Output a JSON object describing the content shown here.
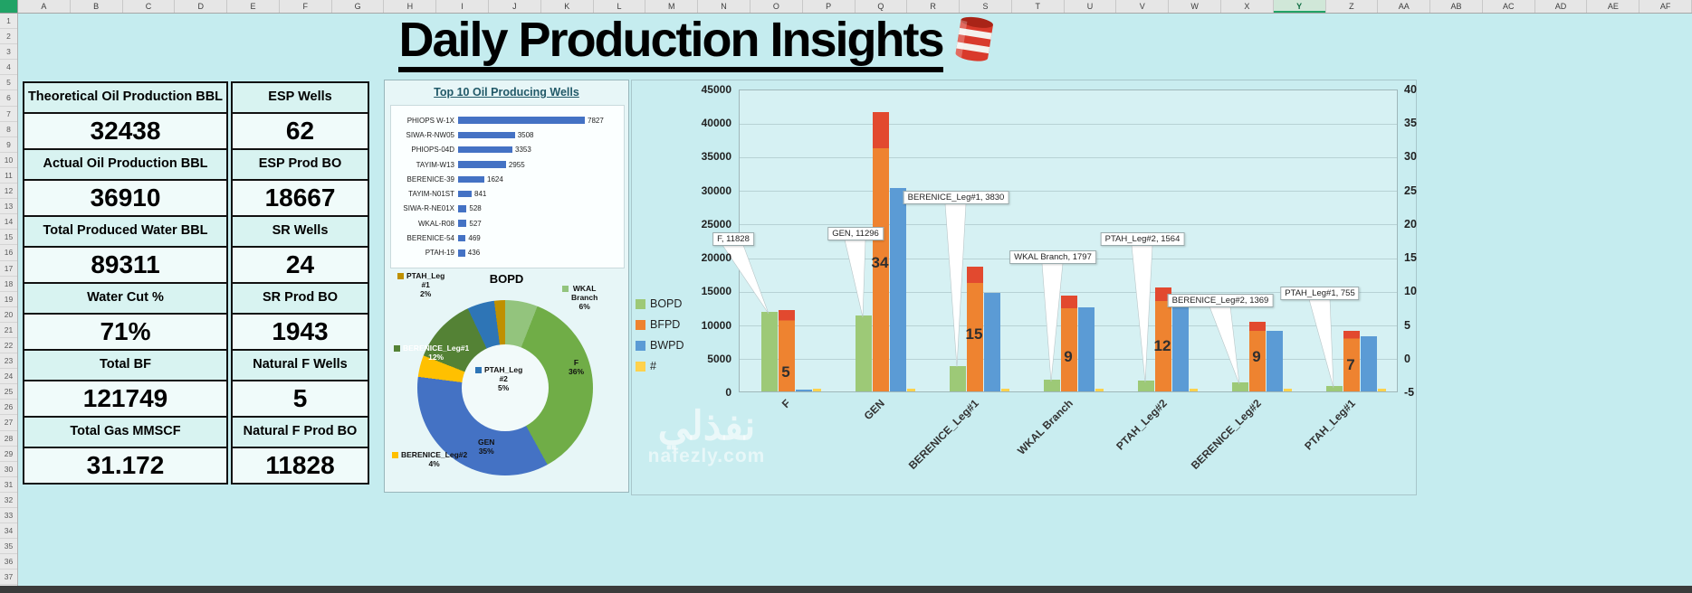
{
  "spreadsheet": {
    "columns": [
      "A",
      "B",
      "C",
      "D",
      "E",
      "F",
      "G",
      "H",
      "I",
      "J",
      "K",
      "L",
      "M",
      "N",
      "O",
      "P",
      "Q",
      "R",
      "S",
      "T",
      "U",
      "V",
      "W",
      "X",
      "Y",
      "Z",
      "AA",
      "AB",
      "AC",
      "AD",
      "AE",
      "AF"
    ],
    "row_count": 37,
    "selected_column": "Y"
  },
  "title": "Daily Production Insights",
  "kpis": {
    "left": [
      {
        "label": "Theoretical Oil Production BBL",
        "value": "32438"
      },
      {
        "label": "Actual Oil Production BBL",
        "value": "36910"
      },
      {
        "label": "Total Produced Water BBL",
        "value": "89311"
      },
      {
        "label": "Water Cut %",
        "value": "71%"
      },
      {
        "label": "Total BF",
        "value": "121749"
      },
      {
        "label": "Total Gas MMSCF",
        "value": "31.172"
      }
    ],
    "right": [
      {
        "label": "ESP Wells",
        "value": "62"
      },
      {
        "label": "ESP Prod BO",
        "value": "18667"
      },
      {
        "label": "SR Wells",
        "value": "24"
      },
      {
        "label": "SR Prod BO",
        "value": "1943"
      },
      {
        "label": "Natural F Wells",
        "value": "5"
      },
      {
        "label": "Natural F Prod BO",
        "value": "11828"
      }
    ]
  },
  "top10": {
    "title": "Top 10 Oil Producing Wells",
    "type": "bar",
    "bar_color": "#4472c4",
    "wells": [
      {
        "name": "PHIOPS W-1X",
        "value": 7827
      },
      {
        "name": "SIWA-R-NW05",
        "value": 3508
      },
      {
        "name": "PHIOPS-04D",
        "value": 3353
      },
      {
        "name": "TAYIM-W13",
        "value": 2955
      },
      {
        "name": "BERENICE-39",
        "value": 1624
      },
      {
        "name": "TAYIM-N01ST",
        "value": 841
      },
      {
        "name": "SIWA-R-NE01X",
        "value": 528
      },
      {
        "name": "WKAL-R08",
        "value": 527
      },
      {
        "name": "BERENICE-54",
        "value": 469
      },
      {
        "name": "PTAH-19",
        "value": 436
      }
    ]
  },
  "donut": {
    "title": "BOPD",
    "type": "pie",
    "slices": [
      {
        "name": "WKAL Branch",
        "pct": 6,
        "color": "#93c47d",
        "lines": [
          "WKAL",
          "Branch",
          "6%"
        ],
        "key": true,
        "white": false
      },
      {
        "name": "F",
        "pct": 36,
        "color": "#70ad47",
        "lines": [
          "F",
          "36%"
        ],
        "key": false,
        "white": false
      },
      {
        "name": "GEN",
        "pct": 35,
        "color": "#4472c4",
        "lines": [
          "GEN",
          "35%"
        ],
        "key": false,
        "white": false
      },
      {
        "name": "BERENICE_Leg#2",
        "pct": 4,
        "color": "#ffc000",
        "lines": [
          "BERENICE_Leg#2",
          "4%"
        ],
        "key": true,
        "white": false
      },
      {
        "name": "BERENICE_Leg#1",
        "pct": 12,
        "color": "#548235",
        "lines": [
          "BERENICE_Leg#1",
          "12%"
        ],
        "key": true,
        "white": true
      },
      {
        "name": "PTAH_Leg #2",
        "pct": 5,
        "color": "#2e75b6",
        "lines": [
          "PTAH_Leg",
          "#2",
          "5%"
        ],
        "key": true,
        "white": false
      },
      {
        "name": "PTAH_Leg #1",
        "pct": 2,
        "color": "#bf9000",
        "lines": [
          "PTAH_Leg",
          "#1",
          "2%"
        ],
        "key": true,
        "white": false
      }
    ]
  },
  "combo": {
    "type": "bar",
    "legend": [
      {
        "label": "BOPD",
        "color": "#9dc977"
      },
      {
        "label": "BFPD",
        "color": "#ee8330"
      },
      {
        "label": "BWPD",
        "color": "#5b9bd5"
      },
      {
        "label": "#",
        "color": "#ffd24d"
      }
    ],
    "categories": [
      "F",
      "GEN",
      "BERENICE_Leg#1",
      "WKAL Branch",
      "PTAH_Leg#2",
      "BERENICE_Leg#2",
      "PTAH_Leg#1"
    ],
    "series": {
      "BOPD": [
        11828,
        11296,
        3830,
        1797,
        1564,
        1369,
        755
      ],
      "BFPD": [
        12050,
        41500,
        18500,
        14300,
        15400,
        10400,
        8950
      ],
      "BWPD": [
        230,
        30200,
        14650,
        12500,
        13800,
        9050,
        8200
      ],
      "#": [
        5,
        34,
        15,
        9,
        12,
        9,
        7
      ]
    },
    "callouts": [
      "F, 11828",
      "GEN, 11296",
      "BERENICE_Leg#1, 3830",
      "WKAL Branch, 1797",
      "PTAH_Leg#2, 1564",
      "BERENICE_Leg#2, 1369",
      "PTAH_Leg#1, 755"
    ],
    "left_axis": {
      "min": 0,
      "max": 45000,
      "step": 5000
    },
    "right_axis": {
      "min": 0,
      "max": 40,
      "step": 5
    },
    "bfpd_cap_color": "#e2492f"
  },
  "watermark": {
    "line1": "نفذلي",
    "line2": "nafezly.com"
  }
}
